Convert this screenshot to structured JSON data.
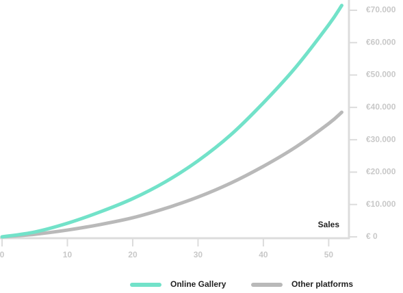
{
  "chart_data": {
    "type": "line",
    "annotation": "Sales",
    "x": [
      0,
      5,
      10,
      15,
      20,
      25,
      30,
      35,
      40,
      45,
      50,
      52
    ],
    "series": [
      {
        "name": "Online Gallery",
        "color": "#72e2c9",
        "values": [
          0,
          1500,
          4200,
          7700,
          11800,
          17000,
          23500,
          31500,
          41400,
          52500,
          65500,
          71500
        ]
      },
      {
        "name": "Other platforms",
        "color": "#b9b9b9",
        "values": [
          0,
          800,
          2100,
          3800,
          5900,
          8800,
          12300,
          16600,
          21800,
          27800,
          35000,
          38500
        ]
      }
    ],
    "xlim": [
      0,
      53.1
    ],
    "xticks": [
      0,
      10,
      20,
      30,
      40,
      50
    ],
    "ylim": [
      0,
      70000
    ],
    "yticks": [
      {
        "value": 0,
        "label": "€ 0"
      },
      {
        "value": 10000,
        "label": "€10.000"
      },
      {
        "value": 20000,
        "label": "€20.000"
      },
      {
        "value": 30000,
        "label": "€30.000"
      },
      {
        "value": 40000,
        "label": "€40.000"
      },
      {
        "value": 50000,
        "label": "€50.000"
      },
      {
        "value": 60000,
        "label": "€60.000"
      },
      {
        "value": 70000,
        "label": "€70.000"
      }
    ],
    "legend": "bottom"
  }
}
